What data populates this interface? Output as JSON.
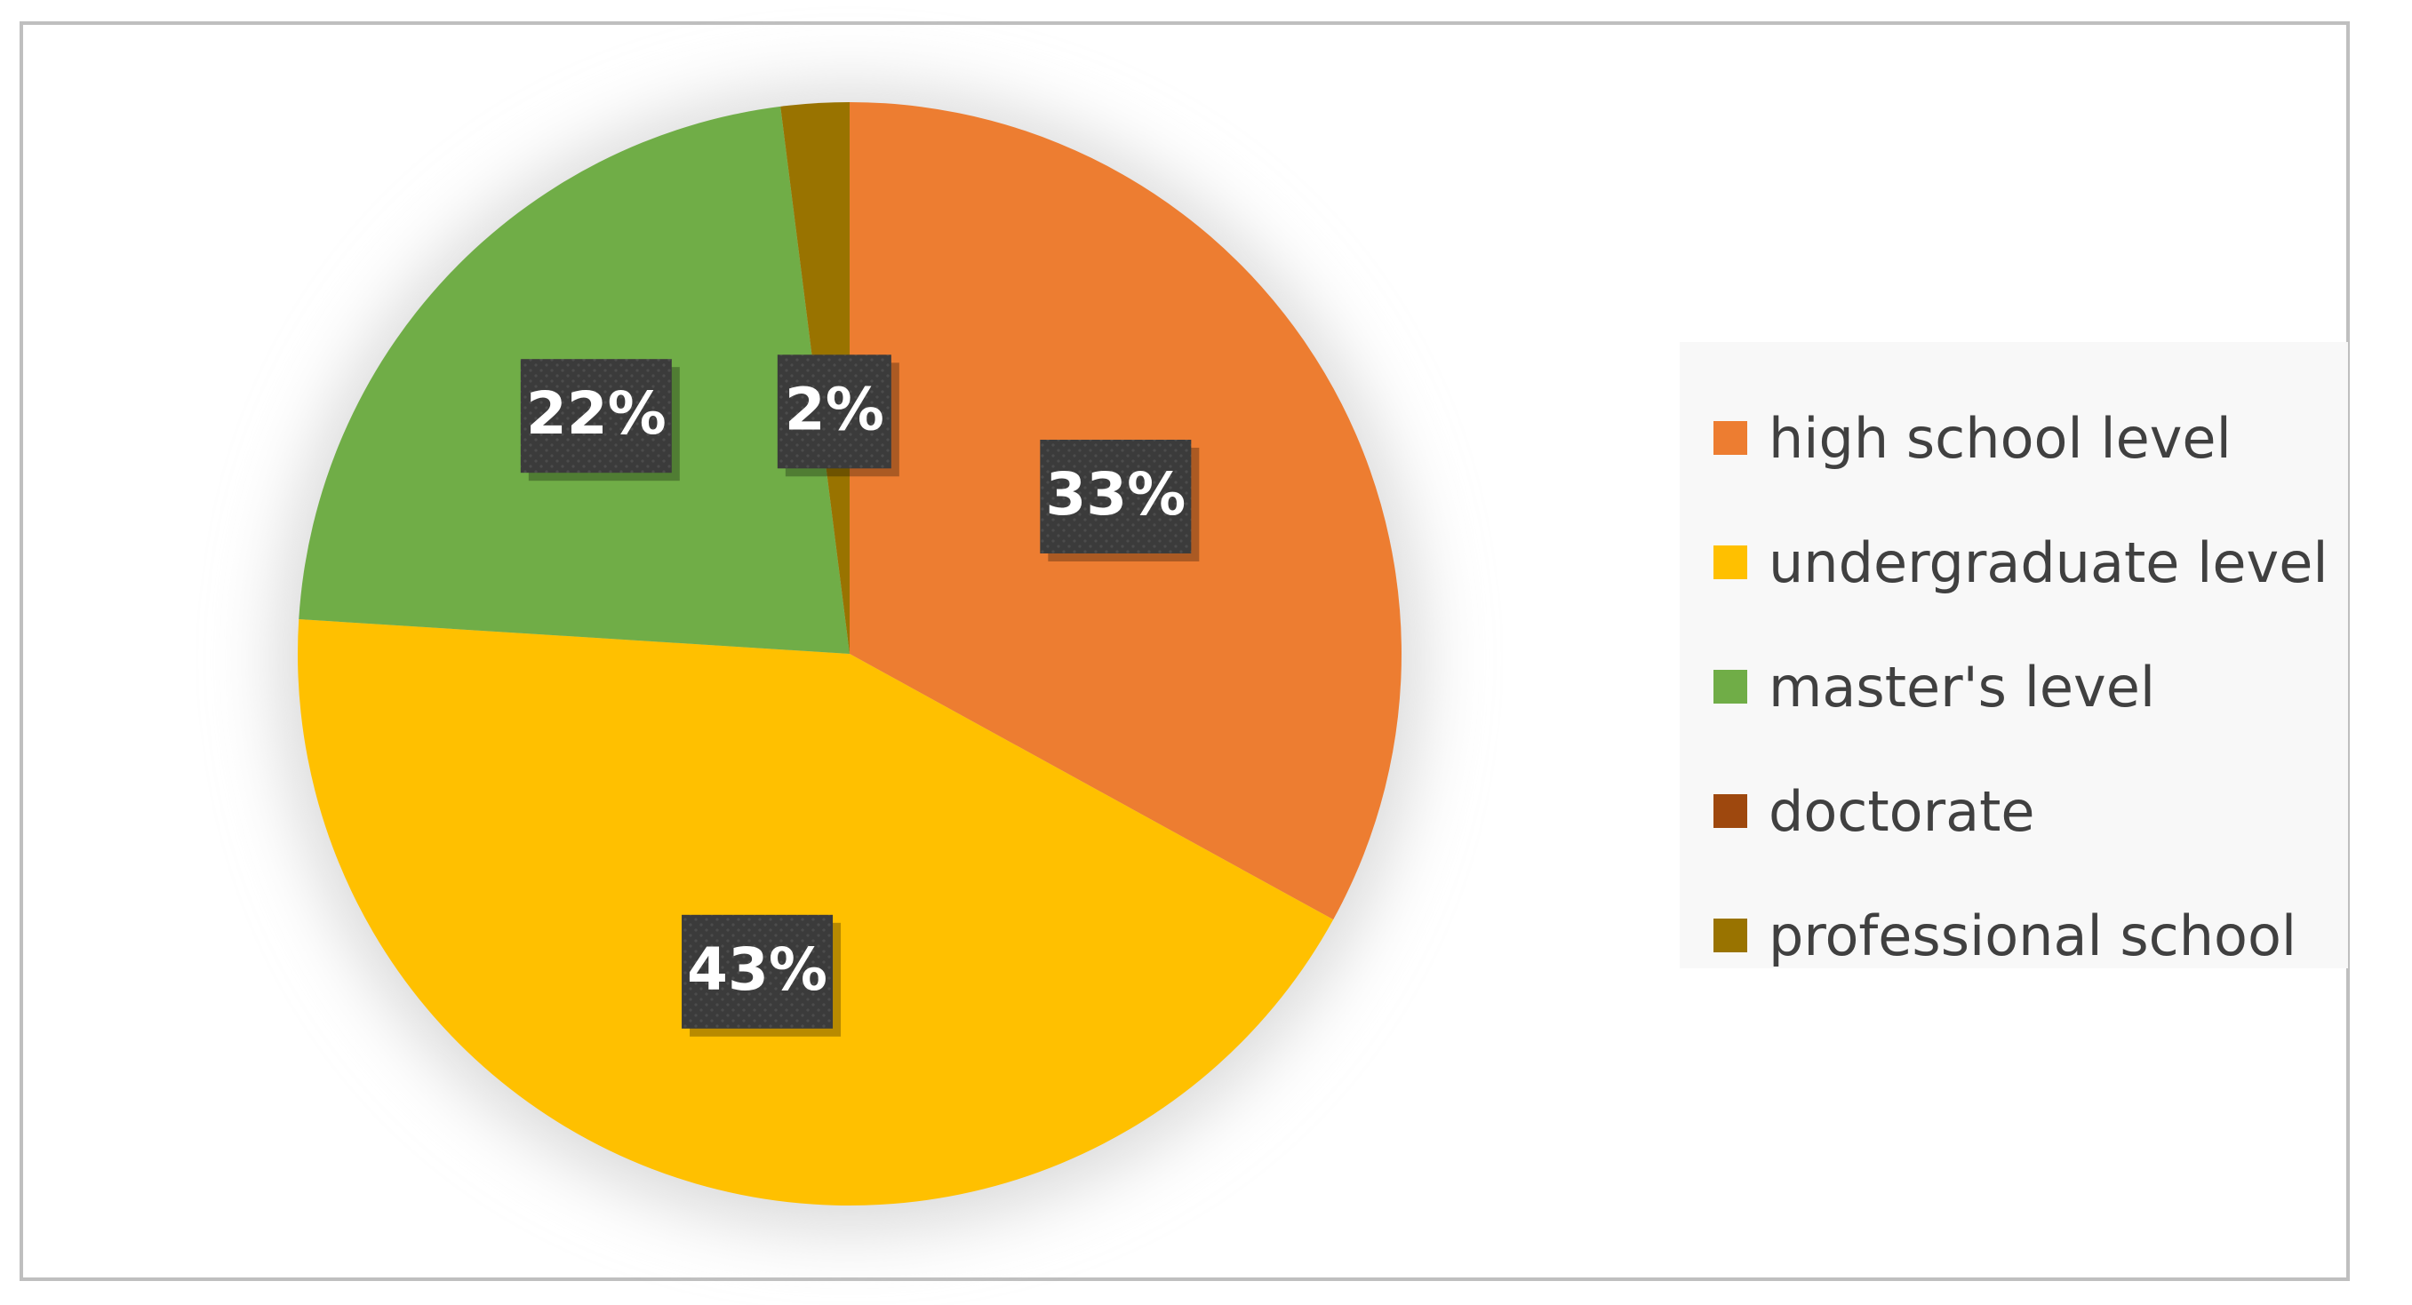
{
  "chart_data": {
    "type": "pie",
    "categories": [
      "high school level",
      "undergraduate level",
      "master's level",
      "doctorate",
      "professional school"
    ],
    "values": [
      33,
      43,
      22,
      0,
      2
    ],
    "data_labels": [
      "33%",
      "43%",
      "22%",
      "",
      "2%"
    ],
    "colors": [
      "#ed7d31",
      "#ffc000",
      "#70ad47",
      "#9e480e",
      "#997300"
    ],
    "legend_position": "right",
    "start_angle": "12 o'clock, clockwise"
  }
}
